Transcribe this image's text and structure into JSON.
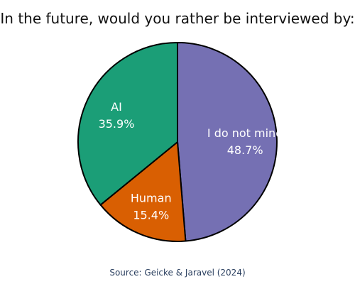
{
  "chart_data": {
    "type": "pie",
    "title": "In the future, would you rather be interviewed by:",
    "slices": [
      {
        "label": "I do not mind",
        "value": 48.7,
        "value_label": "48.7%",
        "color": "#7570b3"
      },
      {
        "label": "Human",
        "value": 15.4,
        "value_label": "15.4%",
        "color": "#d95f02"
      },
      {
        "label": "AI",
        "value": 35.9,
        "value_label": "35.9%",
        "color": "#1b9e77"
      }
    ],
    "direction": "clockwise",
    "start": "12 o'clock",
    "legend": "none"
  },
  "source": "Source: Geicke & Jaravel (2024)"
}
